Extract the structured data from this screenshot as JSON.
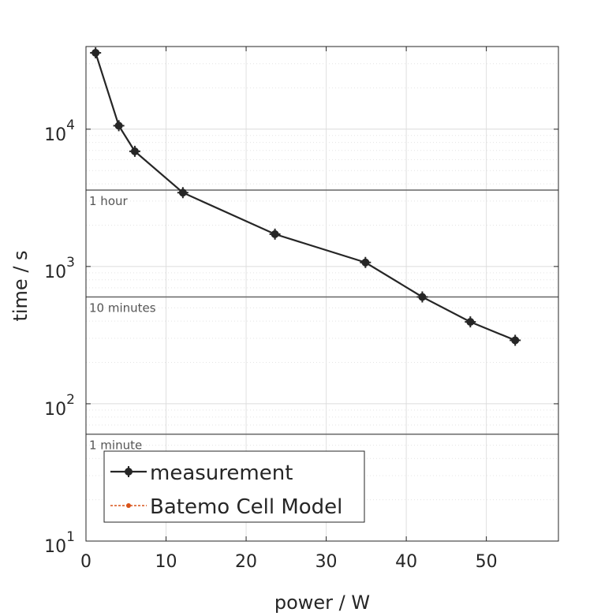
{
  "chart_data": {
    "type": "line",
    "xlabel": "power / W",
    "ylabel": "time / s",
    "xlim": [
      0,
      59
    ],
    "ylim": [
      10,
      40000
    ],
    "yscale": "log",
    "grid": true,
    "legend_placement": "bottom-left",
    "xticks": [
      {
        "value": 0,
        "label": "0"
      },
      {
        "value": 10,
        "label": "10"
      },
      {
        "value": 20,
        "label": "20"
      },
      {
        "value": 30,
        "label": "30"
      },
      {
        "value": 40,
        "label": "40"
      },
      {
        "value": 50,
        "label": "50"
      }
    ],
    "yticks": [
      {
        "value": 10,
        "base": "10",
        "exp": "1"
      },
      {
        "value": 100,
        "base": "10",
        "exp": "2"
      },
      {
        "value": 1000,
        "base": "10",
        "exp": "3"
      },
      {
        "value": 10000,
        "base": "10",
        "exp": "4"
      }
    ],
    "series": [
      {
        "name": "measurement",
        "color": "#262626",
        "x": [
          1.2,
          4.1,
          6.1,
          12.1,
          23.6,
          34.9,
          42.0,
          48.0,
          53.6
        ],
        "y": [
          36000,
          10600,
          6900,
          3450,
          1720,
          1070,
          600,
          395,
          290
        ]
      },
      {
        "name": "Batemo Cell Model",
        "color": "#d95319",
        "x": [],
        "y": []
      }
    ],
    "reference_lines": [
      {
        "value": 3600,
        "label": "1 hour"
      },
      {
        "value": 600,
        "label": "10 minutes"
      },
      {
        "value": 60,
        "label": "1 minute"
      }
    ]
  }
}
